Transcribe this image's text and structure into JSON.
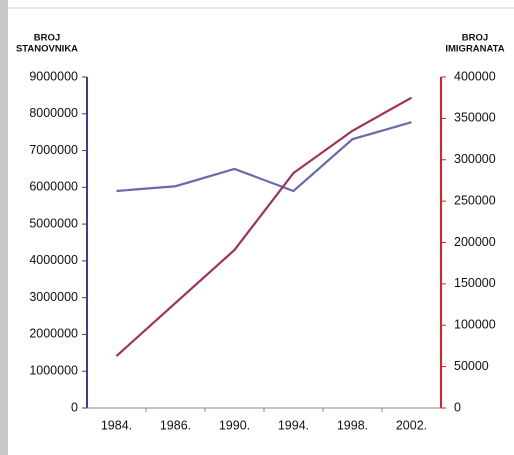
{
  "chart_data": {
    "type": "line",
    "y_label_lines": [
      "BROJ",
      "STANOVNIKA"
    ],
    "y2_label_lines": [
      "BROJ",
      "IMIGRANATA"
    ],
    "categories": [
      "1984.",
      "1986.",
      "1990.",
      "1994.",
      "1998.",
      "2002."
    ],
    "series": [
      {
        "color": "#6c6aa8",
        "values": [
          5900000,
          6030000,
          6500000,
          5900000,
          7310000,
          7770000
        ]
      },
      {
        "color": "#a3305a",
        "axis": "y2",
        "values": [
          62800,
          127000,
          191000,
          284000,
          335000,
          375000
        ]
      }
    ],
    "ylim": [
      0,
      9000000
    ],
    "yticks": [
      0,
      1000000,
      2000000,
      3000000,
      4000000,
      5000000,
      6000000,
      7000000,
      8000000,
      9000000
    ],
    "y2lim": [
      0,
      400000
    ],
    "y2ticks": [
      0,
      50000,
      100000,
      150000,
      200000,
      250000,
      300000,
      350000,
      400000
    ],
    "y_axis_color": "#3a3aa0",
    "y2_axis_color": "#e02020",
    "grid": false
  }
}
